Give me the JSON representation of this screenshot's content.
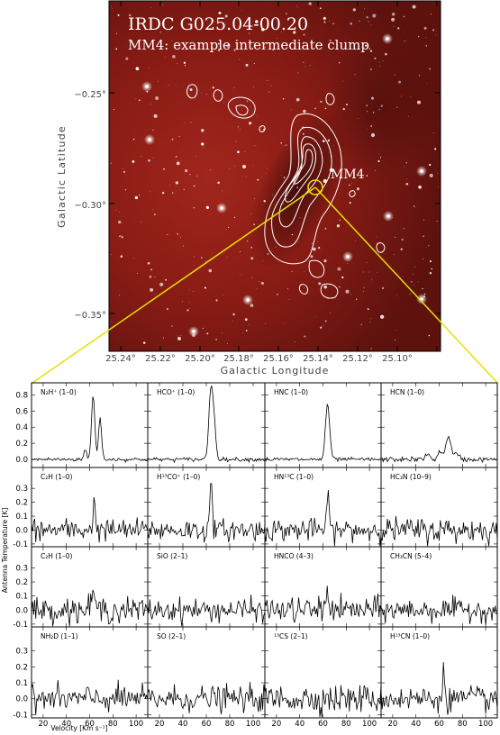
{
  "image": {
    "title_line1": "IRDC G025.04-00.20",
    "title_line2": "MM4: example intermediate clump",
    "clump_label": "MM4",
    "y_axis_label": "Galactic Latitude",
    "x_axis_label": "Galactic Longitude",
    "lat_ticks": [
      "−0.25°",
      "−0.30°",
      "−0.35°"
    ],
    "lon_ticks": [
      "25.24°",
      "25.22°",
      "25.20°",
      "25.18°",
      "25.16°",
      "25.14°",
      "25.12°",
      "25.10°"
    ],
    "background_color": "#8a1a14",
    "contour_color": "#ffffff",
    "highlight_color": "#e8e000"
  },
  "chart_data": {
    "type": "line",
    "grid": "4x4",
    "xlabel": "Velocity [Km s⁻¹]",
    "ylabel": "Antenna Temperature [K]",
    "xlim": [
      10,
      110
    ],
    "x_ticks": [
      "20",
      "40",
      "60",
      "80",
      "100"
    ],
    "rows": [
      {
        "ylim": [
          -0.1,
          0.95
        ],
        "y_ticks": [
          "0.8",
          "0.6",
          "0.4",
          "0.2",
          "0.0"
        ],
        "y_tick_values": [
          0.8,
          0.6,
          0.4,
          0.2,
          0.0
        ]
      },
      {
        "ylim": [
          -0.12,
          0.45
        ],
        "y_ticks": [
          "0.3",
          "0.2",
          "0.1",
          "0.0",
          "-0.1"
        ],
        "y_tick_values": [
          0.3,
          0.2,
          0.1,
          0.0,
          -0.1
        ]
      },
      {
        "ylim": [
          -0.12,
          0.45
        ],
        "y_ticks": [
          "0.3",
          "0.2",
          "0.1",
          "0.0",
          "-0.1"
        ],
        "y_tick_values": [
          0.3,
          0.2,
          0.1,
          0.0,
          -0.1
        ]
      },
      {
        "ylim": [
          -0.12,
          0.45
        ],
        "y_ticks": [
          "0.3",
          "0.2",
          "0.1",
          "0.0",
          "-0.1"
        ],
        "y_tick_values": [
          0.3,
          0.2,
          0.1,
          0.0,
          -0.1
        ]
      }
    ],
    "panels": [
      {
        "label": "N₂H⁺ (1–0)",
        "noise": 0.012,
        "peaks": [
          [
            56,
            0.12,
            1.2
          ],
          [
            63,
            0.8,
            1.4
          ],
          [
            69,
            0.52,
            1.3
          ]
        ]
      },
      {
        "label": "HCO⁺ (1–0)",
        "noise": 0.012,
        "peaks": [
          [
            64,
            0.88,
            1.8
          ],
          [
            67,
            0.3,
            1.5
          ]
        ]
      },
      {
        "label": "HNC (1–0)",
        "noise": 0.012,
        "peaks": [
          [
            64,
            0.68,
            1.8
          ]
        ]
      },
      {
        "label": "HCN (1–0)",
        "noise": 0.015,
        "peaks": [
          [
            50,
            0.06,
            2.0
          ],
          [
            61,
            0.1,
            2.0
          ],
          [
            68,
            0.3,
            2.0
          ],
          [
            75,
            0.07,
            2.0
          ]
        ]
      },
      {
        "label": "C₂H (1–0)",
        "noise": 0.04,
        "peaks": [
          [
            64,
            0.18,
            1.2
          ]
        ]
      },
      {
        "label": "H¹³CO⁺ (1–0)",
        "noise": 0.04,
        "peaks": [
          [
            64,
            0.28,
            1.2
          ]
        ]
      },
      {
        "label": "HN¹³C (1–0)",
        "noise": 0.04,
        "peaks": [
          [
            64,
            0.2,
            1.3
          ]
        ]
      },
      {
        "label": "HC₃N (10–9)",
        "noise": 0.045,
        "peaks": []
      },
      {
        "label": "C₂H (1–0)",
        "noise": 0.045,
        "peaks": [
          [
            63,
            0.14,
            1.3
          ]
        ]
      },
      {
        "label": "SiO (2–1)",
        "noise": 0.04,
        "peaks": []
      },
      {
        "label": "HNCO (4–3)",
        "noise": 0.045,
        "peaks": [
          [
            64,
            0.14,
            1.3
          ]
        ]
      },
      {
        "label": "CH₃CN (5–4)",
        "noise": 0.04,
        "peaks": []
      },
      {
        "label": "NH₂D (1–1)",
        "noise": 0.04,
        "peaks": []
      },
      {
        "label": "SO (2–1)",
        "noise": 0.04,
        "peaks": []
      },
      {
        "label": "¹³CS (2–1)",
        "noise": 0.045,
        "peaks": []
      },
      {
        "label": "H¹³CN (1–0)",
        "noise": 0.04,
        "peaks": [
          [
            64,
            0.15,
            1.1
          ]
        ]
      }
    ]
  }
}
